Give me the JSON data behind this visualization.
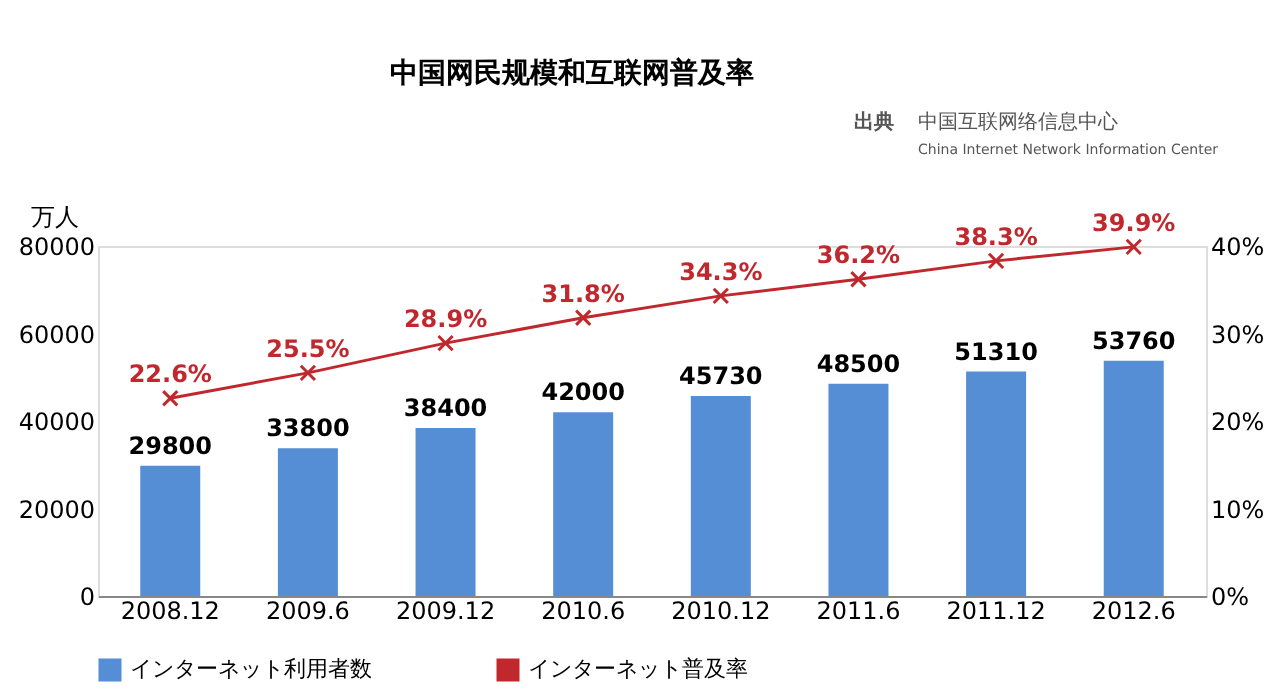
{
  "chart_data": {
    "type": "bar",
    "title": "中国网民规模和互联网普及率",
    "ylabel": "万人",
    "annotations": [
      "出典",
      "中国互联网络信息中心",
      "China Internet Network Information Center"
    ],
    "categories": [
      "2008.12",
      "2009.6",
      "2009.12",
      "2010.6",
      "2010.12",
      "2011.6",
      "2011.12",
      "2012.6"
    ],
    "series": [
      {
        "name": "インターネット利用者数",
        "color": "#558ed5",
        "values": [
          29800,
          33800,
          38400,
          42000,
          45730,
          48500,
          51310,
          53760
        ]
      },
      {
        "name": "インターネット普及率",
        "type": "line",
        "axis": "y2",
        "color": "#c0282d",
        "marker": "cross",
        "values": [
          22.6,
          25.5,
          28.9,
          31.8,
          34.3,
          36.2,
          38.3,
          39.9
        ],
        "value_labels": [
          "22.6%",
          "25.5%",
          "28.9%",
          "31.8%",
          "34.3%",
          "36.2%",
          "38.3%",
          "39.9%"
        ]
      }
    ],
    "ylim": [
      0,
      80000
    ],
    "yticks": [
      0,
      20000,
      40000,
      60000,
      80000
    ],
    "y2lim": [
      0,
      40
    ],
    "y2ticks": [
      {
        "value": 0,
        "label": "0%"
      },
      {
        "value": 10,
        "label": "10%"
      },
      {
        "value": 20,
        "label": "20%"
      },
      {
        "value": 30,
        "label": "30%"
      },
      {
        "value": 40,
        "label": "40%"
      }
    ],
    "data_labels": true,
    "grid": false,
    "legend": "bottom"
  }
}
